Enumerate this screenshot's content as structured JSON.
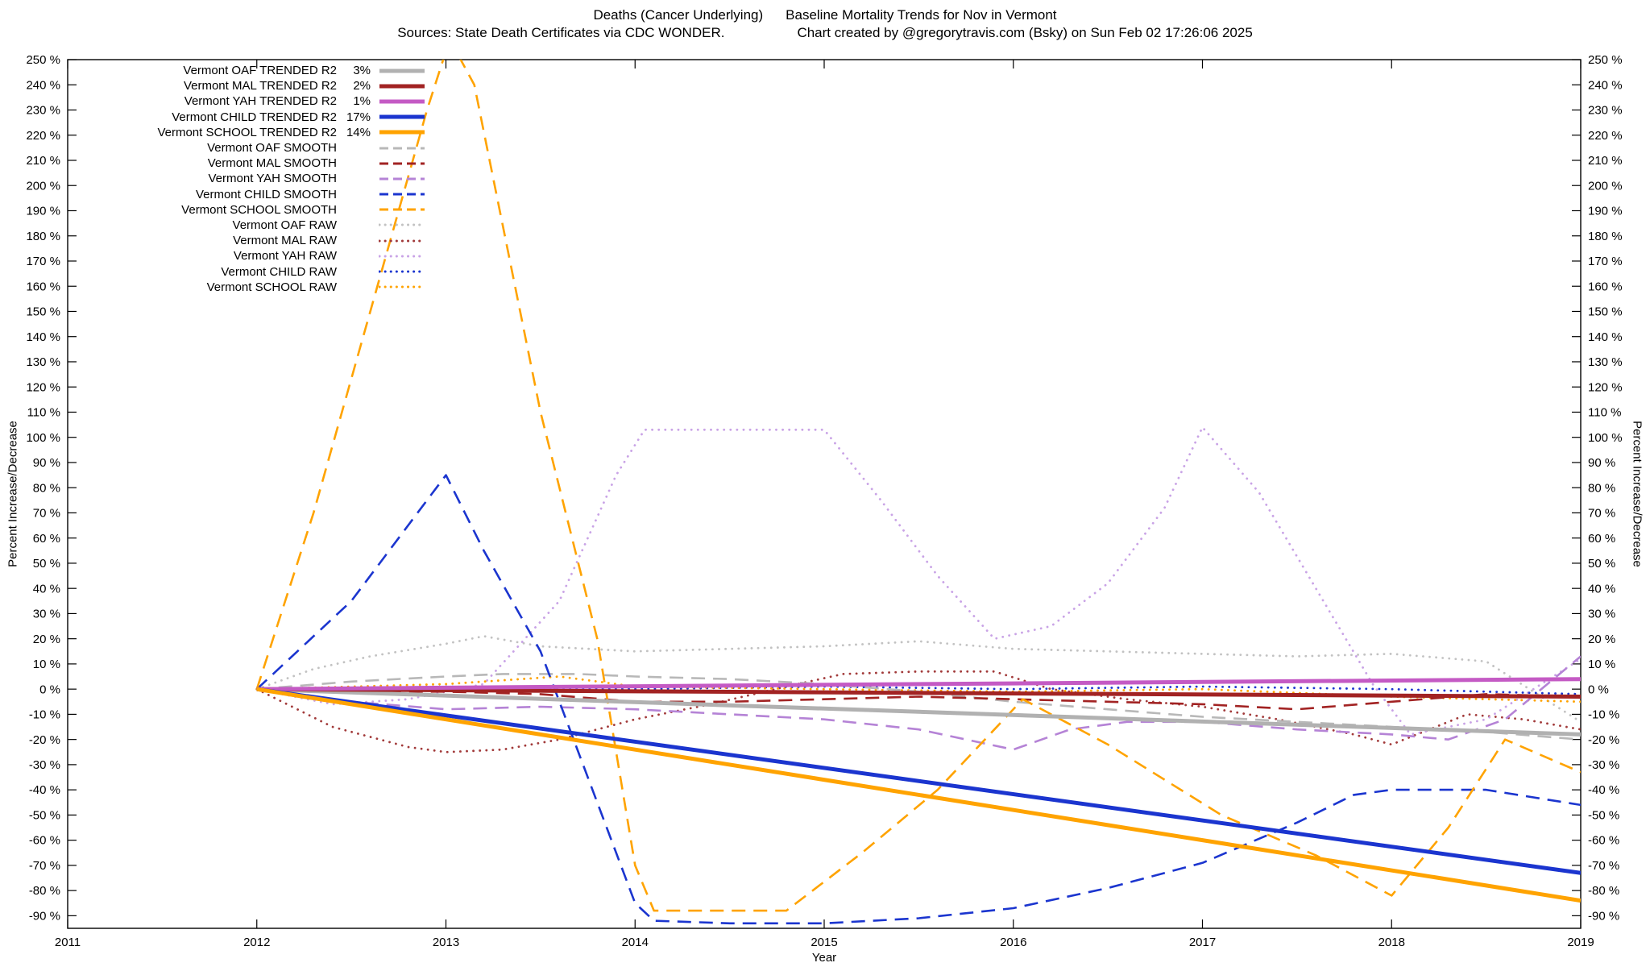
{
  "title": {
    "part1": "Deaths (Cancer Underlying)",
    "part2": "Baseline Mortality Trends for Nov in Vermont"
  },
  "subtitle": {
    "sources": "Sources: State Death Certificates via CDC WONDER.",
    "credit": "Chart created by @gregorytravis.com (Bsky) on Sun Feb 02 17:26:06 2025"
  },
  "labels": {
    "ylabel_left": "Percent Increase/Decrease",
    "ylabel_right": "Percent Increase/Decrease",
    "xlabel": "Year"
  },
  "colors": {
    "gray": "#b1b1b1",
    "gray_raw": "#c2c2c2",
    "darkred": "#a22323",
    "darkred_raw": "#a23a3a",
    "violet": "#c45ac4",
    "violet_smooth": "#b583d6",
    "violet_raw": "#c9a3e6",
    "blue": "#1b35cf",
    "orange": "#ffa300",
    "axis": "#000000"
  },
  "chart_data": {
    "type": "line",
    "title": "Deaths (Cancer Underlying)  Baseline Mortality Trends for Nov in Vermont",
    "xlabel": "Year",
    "ylabel": "Percent Increase/Decrease",
    "xlim": [
      2011,
      2019
    ],
    "ylim": [
      -95,
      250
    ],
    "xticks": [
      2011,
      2012,
      2013,
      2014,
      2015,
      2016,
      2017,
      2018,
      2019
    ],
    "ytick_min": -90,
    "ytick_max": 250,
    "ytick_step": 10,
    "ytick_suffix": " %",
    "grid": false,
    "legend_position": "top-left",
    "series": [
      {
        "name": "oaf-trended",
        "legend_label": "Vermont OAF TRENDED R2",
        "r2": "3%",
        "color": "#b1b1b1",
        "style": "solid",
        "width": 5,
        "points": [
          [
            2012,
            0
          ],
          [
            2019,
            -18
          ]
        ]
      },
      {
        "name": "mal-trended",
        "legend_label": "Vermont MAL TRENDED R2",
        "r2": "2%",
        "color": "#a22323",
        "style": "solid",
        "width": 5,
        "points": [
          [
            2012,
            0
          ],
          [
            2019,
            -3
          ]
        ]
      },
      {
        "name": "yah-trended",
        "legend_label": "Vermont YAH TRENDED R2",
        "r2": "1%",
        "color": "#c45ac4",
        "style": "solid",
        "width": 5,
        "points": [
          [
            2012,
            0
          ],
          [
            2019,
            4
          ]
        ]
      },
      {
        "name": "child-trended",
        "legend_label": "Vermont CHILD TRENDED R2",
        "r2": "17%",
        "color": "#1b35cf",
        "style": "solid",
        "width": 5,
        "points": [
          [
            2012,
            0
          ],
          [
            2019,
            -73
          ]
        ]
      },
      {
        "name": "school-trended",
        "legend_label": "Vermont SCHOOL TRENDED R2",
        "r2": "14%",
        "color": "#ffa300",
        "style": "solid",
        "width": 5,
        "points": [
          [
            2012,
            0
          ],
          [
            2019,
            -84
          ]
        ]
      },
      {
        "name": "oaf-smooth",
        "legend_label": "Vermont OAF SMOOTH",
        "r2": "",
        "color": "#b8b8b8",
        "style": "dash",
        "width": 2.6,
        "points": [
          [
            2012,
            0
          ],
          [
            2012.5,
            3
          ],
          [
            2013,
            5
          ],
          [
            2013.3,
            6
          ],
          [
            2013.7,
            6
          ],
          [
            2014,
            5
          ],
          [
            2014.5,
            4
          ],
          [
            2015,
            2
          ],
          [
            2015.5,
            -1
          ],
          [
            2016,
            -5
          ],
          [
            2016.5,
            -8
          ],
          [
            2017,
            -11
          ],
          [
            2017.5,
            -13
          ],
          [
            2018,
            -15
          ],
          [
            2018.5,
            -17
          ],
          [
            2019,
            -20
          ]
        ]
      },
      {
        "name": "mal-smooth",
        "legend_label": "Vermont MAL SMOOTH",
        "r2": "",
        "color": "#a22323",
        "style": "dash",
        "width": 2.6,
        "points": [
          [
            2012,
            0
          ],
          [
            2012.5,
            -1
          ],
          [
            2013,
            -1
          ],
          [
            2013.5,
            -2
          ],
          [
            2014,
            -5
          ],
          [
            2014.5,
            -5
          ],
          [
            2015,
            -4
          ],
          [
            2015.5,
            -3
          ],
          [
            2016,
            -4
          ],
          [
            2016.5,
            -5
          ],
          [
            2017,
            -6
          ],
          [
            2017.5,
            -8
          ],
          [
            2018,
            -5
          ],
          [
            2018.5,
            -2
          ],
          [
            2019,
            -3
          ]
        ]
      },
      {
        "name": "yah-smooth",
        "legend_label": "Vermont YAH SMOOTH",
        "r2": "",
        "color": "#b583d6",
        "style": "dash",
        "width": 2.6,
        "points": [
          [
            2012,
            0
          ],
          [
            2012.5,
            -5
          ],
          [
            2013,
            -8
          ],
          [
            2013.5,
            -7
          ],
          [
            2014,
            -8
          ],
          [
            2014.5,
            -10
          ],
          [
            2015,
            -12
          ],
          [
            2015.5,
            -16
          ],
          [
            2016,
            -24
          ],
          [
            2016.3,
            -16
          ],
          [
            2016.6,
            -13
          ],
          [
            2017,
            -13
          ],
          [
            2017.5,
            -16
          ],
          [
            2018,
            -18
          ],
          [
            2018.3,
            -20
          ],
          [
            2018.6,
            -12
          ],
          [
            2019,
            13
          ]
        ]
      },
      {
        "name": "child-smooth",
        "legend_label": "Vermont CHILD SMOOTH",
        "r2": "",
        "color": "#1b35cf",
        "style": "dash",
        "width": 2.6,
        "points": [
          [
            2012,
            0
          ],
          [
            2012.5,
            35
          ],
          [
            2012.9,
            75
          ],
          [
            2013,
            85
          ],
          [
            2013.2,
            55
          ],
          [
            2013.5,
            15
          ],
          [
            2013.8,
            -45
          ],
          [
            2014,
            -85
          ],
          [
            2014.1,
            -92
          ],
          [
            2014.5,
            -93
          ],
          [
            2015,
            -93
          ],
          [
            2015.5,
            -91
          ],
          [
            2016,
            -87
          ],
          [
            2016.5,
            -79
          ],
          [
            2017,
            -69
          ],
          [
            2017.5,
            -53
          ],
          [
            2017.8,
            -42
          ],
          [
            2018,
            -40
          ],
          [
            2018.5,
            -40
          ],
          [
            2019,
            -46
          ]
        ]
      },
      {
        "name": "school-smooth",
        "legend_label": "Vermont SCHOOL SMOOTH",
        "r2": "",
        "color": "#ffa300",
        "style": "dash",
        "width": 2.6,
        "points": [
          [
            2012,
            0
          ],
          [
            2012.3,
            70
          ],
          [
            2012.6,
            150
          ],
          [
            2012.9,
            230
          ],
          [
            2013.02,
            258
          ],
          [
            2013.15,
            240
          ],
          [
            2013.5,
            110
          ],
          [
            2013.8,
            20
          ],
          [
            2014,
            -70
          ],
          [
            2014.1,
            -88
          ],
          [
            2014.8,
            -88
          ],
          [
            2015.2,
            -65
          ],
          [
            2015.6,
            -40
          ],
          [
            2016.05,
            -4
          ],
          [
            2016.5,
            -22
          ],
          [
            2017.1,
            -50
          ],
          [
            2017.6,
            -66
          ],
          [
            2018,
            -82
          ],
          [
            2018.3,
            -55
          ],
          [
            2018.6,
            -20
          ],
          [
            2019,
            -33
          ]
        ]
      },
      {
        "name": "oaf-raw",
        "legend_label": "Vermont OAF RAW",
        "r2": "",
        "color": "#c2c2c2",
        "style": "dot",
        "width": 2.8,
        "points": [
          [
            2012,
            0
          ],
          [
            2012.3,
            8
          ],
          [
            2012.6,
            13
          ],
          [
            2013,
            18
          ],
          [
            2013.2,
            21
          ],
          [
            2013.5,
            17
          ],
          [
            2014,
            15
          ],
          [
            2014.5,
            16
          ],
          [
            2015,
            17
          ],
          [
            2015.5,
            19
          ],
          [
            2016,
            16
          ],
          [
            2016.5,
            15
          ],
          [
            2017,
            14
          ],
          [
            2017.5,
            13
          ],
          [
            2018,
            14
          ],
          [
            2018.5,
            11
          ],
          [
            2019,
            -13
          ]
        ]
      },
      {
        "name": "mal-raw",
        "legend_label": "Vermont MAL RAW",
        "r2": "",
        "color": "#a23a3a",
        "style": "dot",
        "width": 2.8,
        "points": [
          [
            2012,
            0
          ],
          [
            2012.4,
            -15
          ],
          [
            2012.8,
            -23
          ],
          [
            2013,
            -25
          ],
          [
            2013.3,
            -24
          ],
          [
            2013.6,
            -20
          ],
          [
            2014,
            -12
          ],
          [
            2014.4,
            -6
          ],
          [
            2014.8,
            1
          ],
          [
            2015.1,
            6
          ],
          [
            2015.5,
            7
          ],
          [
            2015.9,
            7
          ],
          [
            2016.2,
            0
          ],
          [
            2016.6,
            -4
          ],
          [
            2017,
            -7
          ],
          [
            2017.4,
            -12
          ],
          [
            2017.8,
            -18
          ],
          [
            2018,
            -22
          ],
          [
            2018.4,
            -10
          ],
          [
            2018.7,
            -12
          ],
          [
            2019,
            -16
          ]
        ]
      },
      {
        "name": "yah-raw",
        "legend_label": "Vermont YAH RAW",
        "r2": "",
        "color": "#c9a3e6",
        "style": "dot",
        "width": 2.8,
        "points": [
          [
            2012,
            0
          ],
          [
            2012.4,
            -6
          ],
          [
            2012.8,
            -4
          ],
          [
            2013.2,
            2
          ],
          [
            2013.6,
            35
          ],
          [
            2013.9,
            85
          ],
          [
            2014.05,
            103
          ],
          [
            2014.5,
            103
          ],
          [
            2015,
            103
          ],
          [
            2015.3,
            75
          ],
          [
            2015.6,
            45
          ],
          [
            2015.9,
            20
          ],
          [
            2016.2,
            25
          ],
          [
            2016.5,
            42
          ],
          [
            2016.8,
            72
          ],
          [
            2017,
            104
          ],
          [
            2017.3,
            78
          ],
          [
            2017.6,
            40
          ],
          [
            2017.9,
            2
          ],
          [
            2018.1,
            -18
          ],
          [
            2018.5,
            -12
          ],
          [
            2019,
            12
          ]
        ]
      },
      {
        "name": "child-raw",
        "legend_label": "Vermont CHILD RAW",
        "r2": "",
        "color": "#1b35cf",
        "style": "dot",
        "width": 2.8,
        "points": [
          [
            2012,
            0
          ],
          [
            2013,
            1
          ],
          [
            2014,
            0
          ],
          [
            2015,
            1
          ],
          [
            2016,
            0
          ],
          [
            2017,
            1
          ],
          [
            2018,
            0
          ],
          [
            2019,
            -2
          ]
        ]
      },
      {
        "name": "school-raw",
        "legend_label": "Vermont SCHOOL RAW",
        "r2": "",
        "color": "#ffa300",
        "style": "dot",
        "width": 2.8,
        "points": [
          [
            2012,
            0
          ],
          [
            2013,
            2
          ],
          [
            2013.6,
            5
          ],
          [
            2014,
            1
          ],
          [
            2015,
            0
          ],
          [
            2016,
            -1
          ],
          [
            2017,
            0
          ],
          [
            2018,
            -3
          ],
          [
            2019,
            -5
          ]
        ]
      }
    ]
  }
}
